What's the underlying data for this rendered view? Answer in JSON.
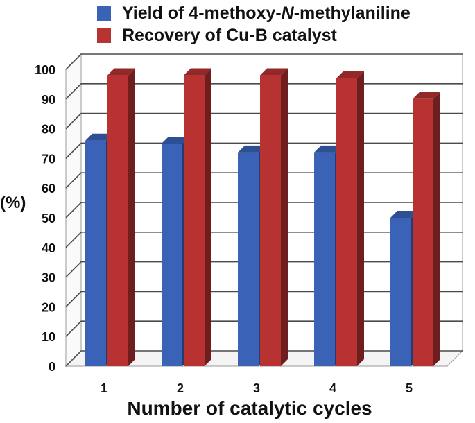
{
  "chart_data": {
    "type": "bar",
    "title": "",
    "xlabel": "Number of catalytic cycles",
    "ylabel": "(%)",
    "categories": [
      "1",
      "2",
      "3",
      "4",
      "5"
    ],
    "ylim": [
      0,
      100
    ],
    "yticks": [
      "0",
      "10",
      "20",
      "30",
      "40",
      "50",
      "60",
      "70",
      "80",
      "90",
      "100"
    ],
    "grid": true,
    "legend_position": "top",
    "series": [
      {
        "name_pre": "Yield of 4-methoxy-",
        "name_italic": "N",
        "name_post": "-methylaniline",
        "color": "#3a63b8",
        "values": [
          76,
          75,
          72,
          72,
          50
        ]
      },
      {
        "name": "Recovery of Cu-B catalyst",
        "color": "#b83232",
        "values": [
          98,
          98,
          98,
          97,
          90
        ]
      }
    ]
  }
}
